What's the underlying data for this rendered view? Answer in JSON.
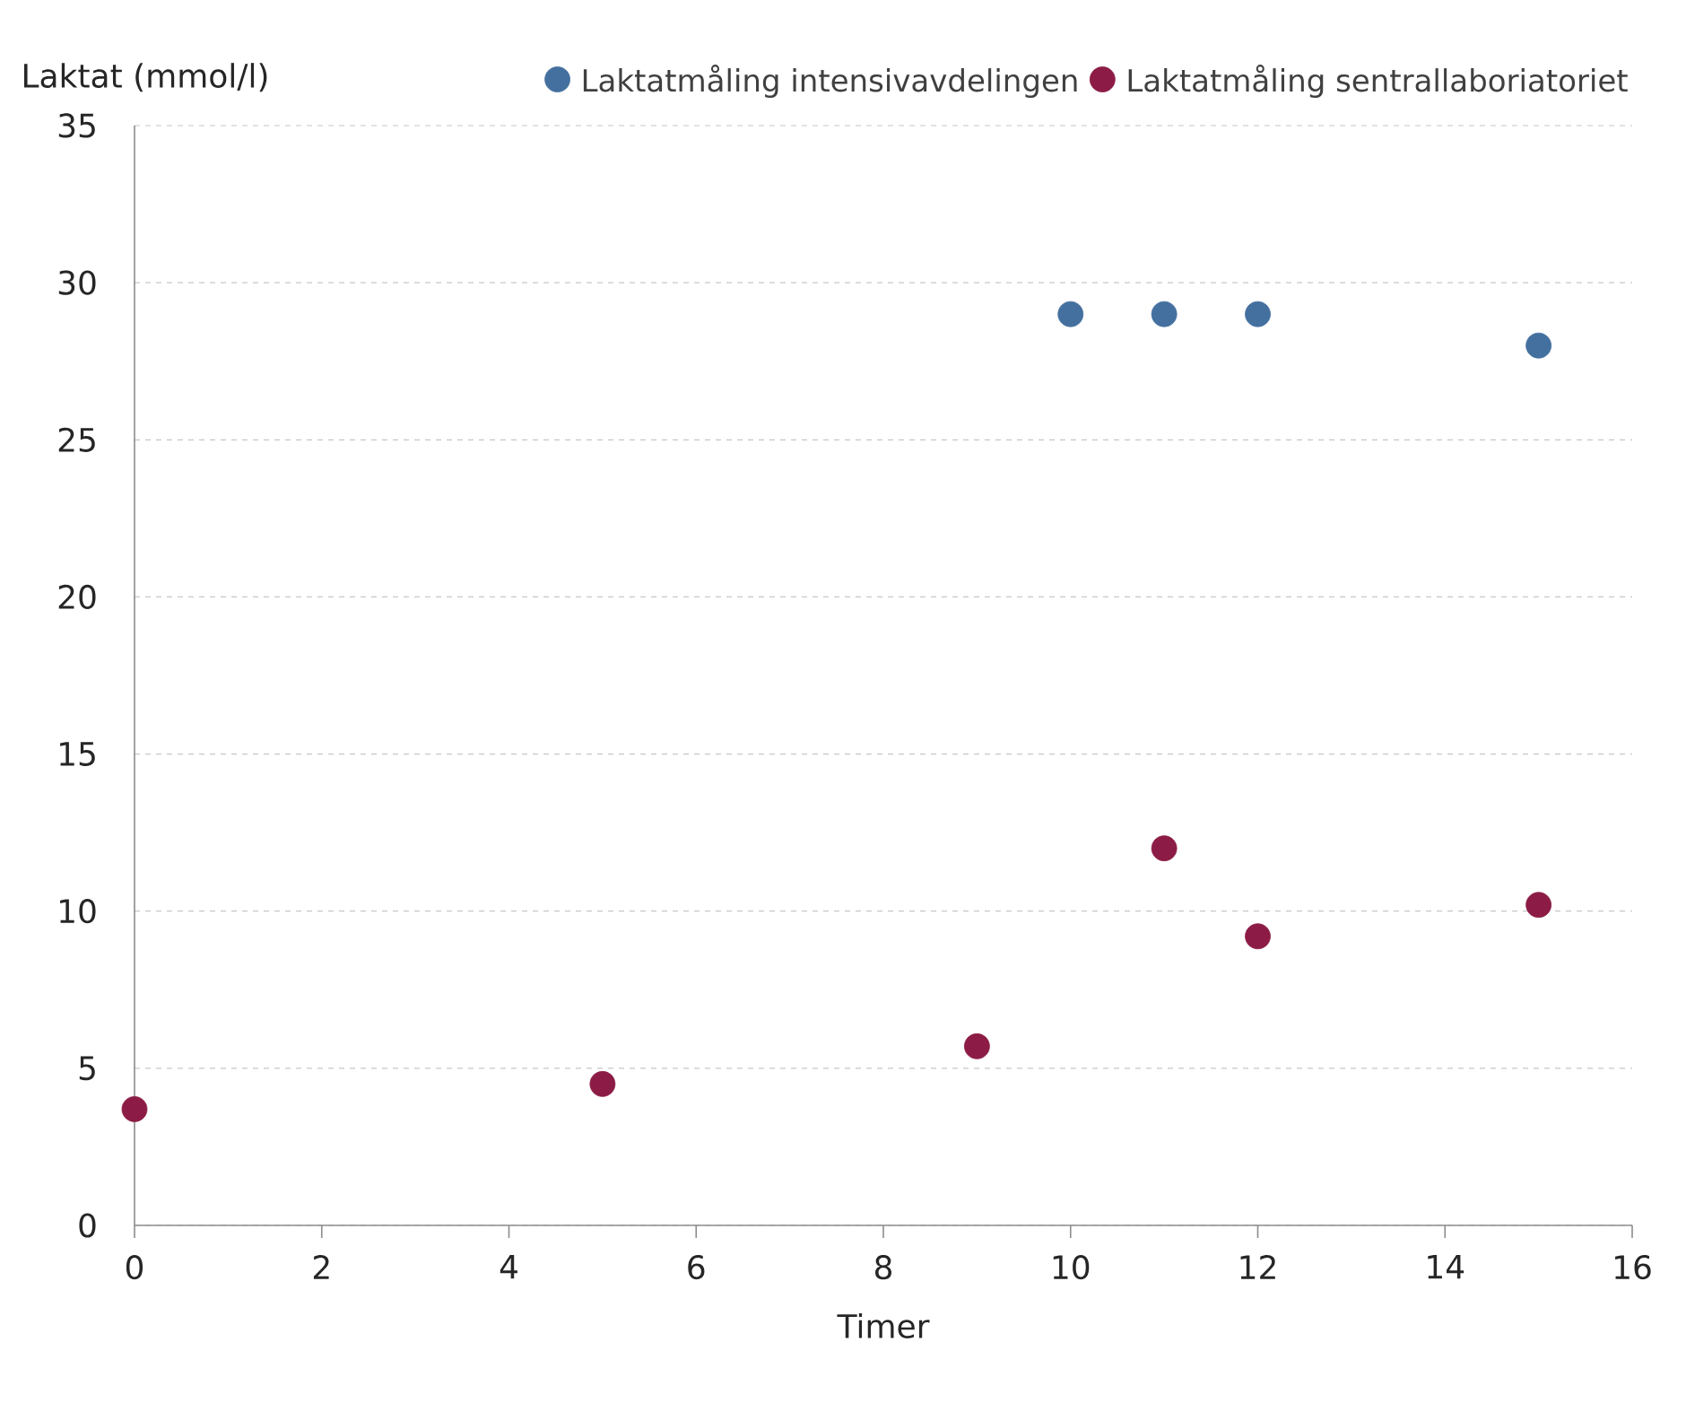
{
  "chart_data": {
    "type": "scatter",
    "ylabel": "Laktat (mmol/l)",
    "xlabel": "Timer",
    "xlim": [
      0,
      16
    ],
    "xticks": [
      0,
      2,
      4,
      6,
      8,
      10,
      12,
      14,
      16
    ],
    "ylim": [
      0,
      35
    ],
    "yticks": [
      0,
      5,
      10,
      15,
      20,
      25,
      30,
      35
    ],
    "grid": "y",
    "legend": "top right",
    "marker": "circle",
    "series": [
      {
        "name": "Laktatmåling intensivavdelingen",
        "color": "#44709f",
        "x": [
          10,
          11,
          12,
          15
        ],
        "values": [
          29,
          29,
          29,
          28
        ]
      },
      {
        "name": "Laktatmåling sentrallaboriatoriet",
        "color": "#8c1c45",
        "x": [
          0,
          5,
          9,
          11,
          12,
          15
        ],
        "values": [
          3.7,
          4.5,
          5.7,
          12,
          9.2,
          10.2
        ]
      }
    ]
  }
}
